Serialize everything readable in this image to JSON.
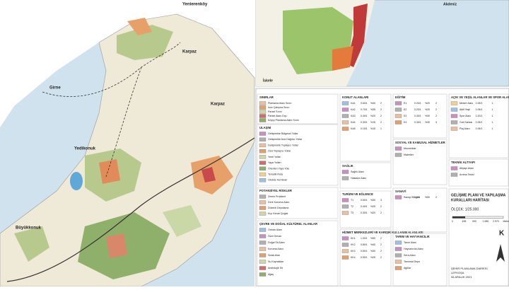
{
  "map": {
    "places": [
      "Yenierenköy",
      "Girne",
      "Karpaz",
      "Karpaz",
      "Yedikonuk",
      "Büyükkonuk"
    ]
  },
  "inset": {
    "places": [
      "Akdeniz",
      "İskele"
    ]
  },
  "legend": {
    "sinirlar": {
      "title": "SINIRLAR",
      "items": [
        "Planlama Alanı Sınırı",
        "İnce Çalışma Sınırı",
        "Parsel Sınırı",
        "Parsel Alanı Dışı",
        "Köyiçi Planlama Alanı Sınırı"
      ]
    },
    "ulasim": {
      "title": "ULAŞIM",
      "items": [
        "Gelişmekte Bölgesel Yollar",
        "Gelişmekte Ana Dağıtıcı Yollar",
        "Gelişmekte Toplayıcı Yollar",
        "Özel Toplayıcı Yollar",
        "Yerel Yollar",
        "Yaya Yolları",
        "Önerilen Yaya Yolu",
        "Tematik Rota",
        "Otobüs Terminali"
      ]
    },
    "riskler": {
      "title": "POTANSİYEL RİSKLER",
      "items": [
        "Zemin Problemi",
        "Dere Koruma Alanı",
        "Düzenli Depolama",
        "Kıyı Kenar Çizgisi"
      ]
    },
    "cevre": {
      "title": "ÇEVRE VE DOĞAL KÜLTÜREL ALANLAR",
      "items": [
        "Orman Alanı",
        "Özel Orman",
        "Doğal Sit Alanı",
        "Koruma Alanı",
        "Sulak Alan",
        "Su Kaynakları",
        "Arkeolojik Sit",
        "Ağaç"
      ]
    },
    "konut": {
      "title": "KONUT ALANLARI",
      "items": [
        [
          "KA1",
          "0.60/1",
          "%40",
          "2"
        ],
        [
          "KA2",
          "0.70/1",
          "%35",
          "2"
        ],
        [
          "KA3",
          "0.40/1",
          "%20",
          "2"
        ],
        [
          "KA4",
          "0.30/1",
          "%15",
          "2"
        ],
        [
          "KA5",
          "0.15/1",
          "%15",
          "1"
        ]
      ]
    },
    "saglik": {
      "title": "SAĞLIK",
      "items": [
        "Sağlık Alanı",
        "Hastane Alanı"
      ]
    },
    "turizm": {
      "title": "TURİZM VE EĞLENCE",
      "items": [
        [
          "T1",
          "0.60/1",
          "%30",
          "3"
        ],
        [
          "T2",
          "0.40/1",
          "%25",
          "2"
        ],
        [
          "T3",
          "0.30/1",
          "%20",
          "2"
        ]
      ]
    },
    "hizmet": {
      "title": "HİZMET MERKEZLERİ VE KARIŞIK KULLANIM ALANLARI",
      "items": [
        [
          "KK1",
          "1.00/1",
          "%50",
          "2"
        ],
        [
          "KK2",
          "0.80/1",
          "%40",
          "2"
        ],
        [
          "KK3",
          "0.60/1",
          "%30",
          "2"
        ],
        [
          "KK4",
          "0.50/1",
          "%25",
          "2"
        ]
      ]
    },
    "egitim": {
      "title": "EĞİTİM",
      "items": [
        [
          "E1",
          "0.20/1",
          "%20",
          "2"
        ],
        [
          "E2",
          "0.20/1",
          "%20",
          "2"
        ],
        [
          "E3",
          "0.30/1",
          "%30",
          "2"
        ],
        [
          "E4",
          "0.30/1",
          "%30",
          "3"
        ]
      ]
    },
    "sosyal": {
      "title": "SOSYAL VE KAMUSAL HİZMETLER",
      "items": [
        "Mezarlıklar",
        "Mabetler"
      ]
    },
    "sanayi": {
      "title": "SANAYİ",
      "items": [
        [
          "Sanayi Bölgesi",
          "1.0/1",
          "%50",
          "2"
        ]
      ]
    },
    "tarim": {
      "title": "TARIM VE HAYVANCILIK",
      "items": [
        "Tarım Alanı",
        "Hayvancılık Alanı",
        "Sera Alanı",
        "Tarımsal Depo",
        "Ağıllar"
      ]
    },
    "acik": {
      "title": "AÇIK VE YEŞİL ALANLAR VE SPOR ALANLARI",
      "items": [
        [
          "Mesire Alanı",
          "0.05/1",
          "1"
        ],
        [
          "Aktif Yeşil",
          "0.05/1",
          "1"
        ],
        [
          "Spor Alanı",
          "0.20/1",
          "1"
        ],
        [
          "Golf Sahası",
          "0.05/1",
          "1"
        ],
        [
          "Plaj Alanı",
          "0.05/1",
          "1"
        ]
      ]
    },
    "teknik": {
      "title": "TEKNİK ALTYAPI",
      "items": [
        "Altyapı Alanı",
        "Arıtma Tesisi"
      ]
    }
  },
  "title_block": {
    "title": [
      "GELİŞME PLANI VE YAPILAŞMA",
      "KURALLARI HARİTASI"
    ],
    "scale": "ÖLÇEK: 1/25.000",
    "scale_labels": [
      "0",
      "495",
      "990",
      "1.980",
      "2.970",
      "Metre"
    ],
    "north": "K",
    "footer": [
      "ŞEHİR PLANLAMA DAİRESİ",
      "LEFKOŞA",
      "06 ARALIK 2021"
    ]
  }
}
